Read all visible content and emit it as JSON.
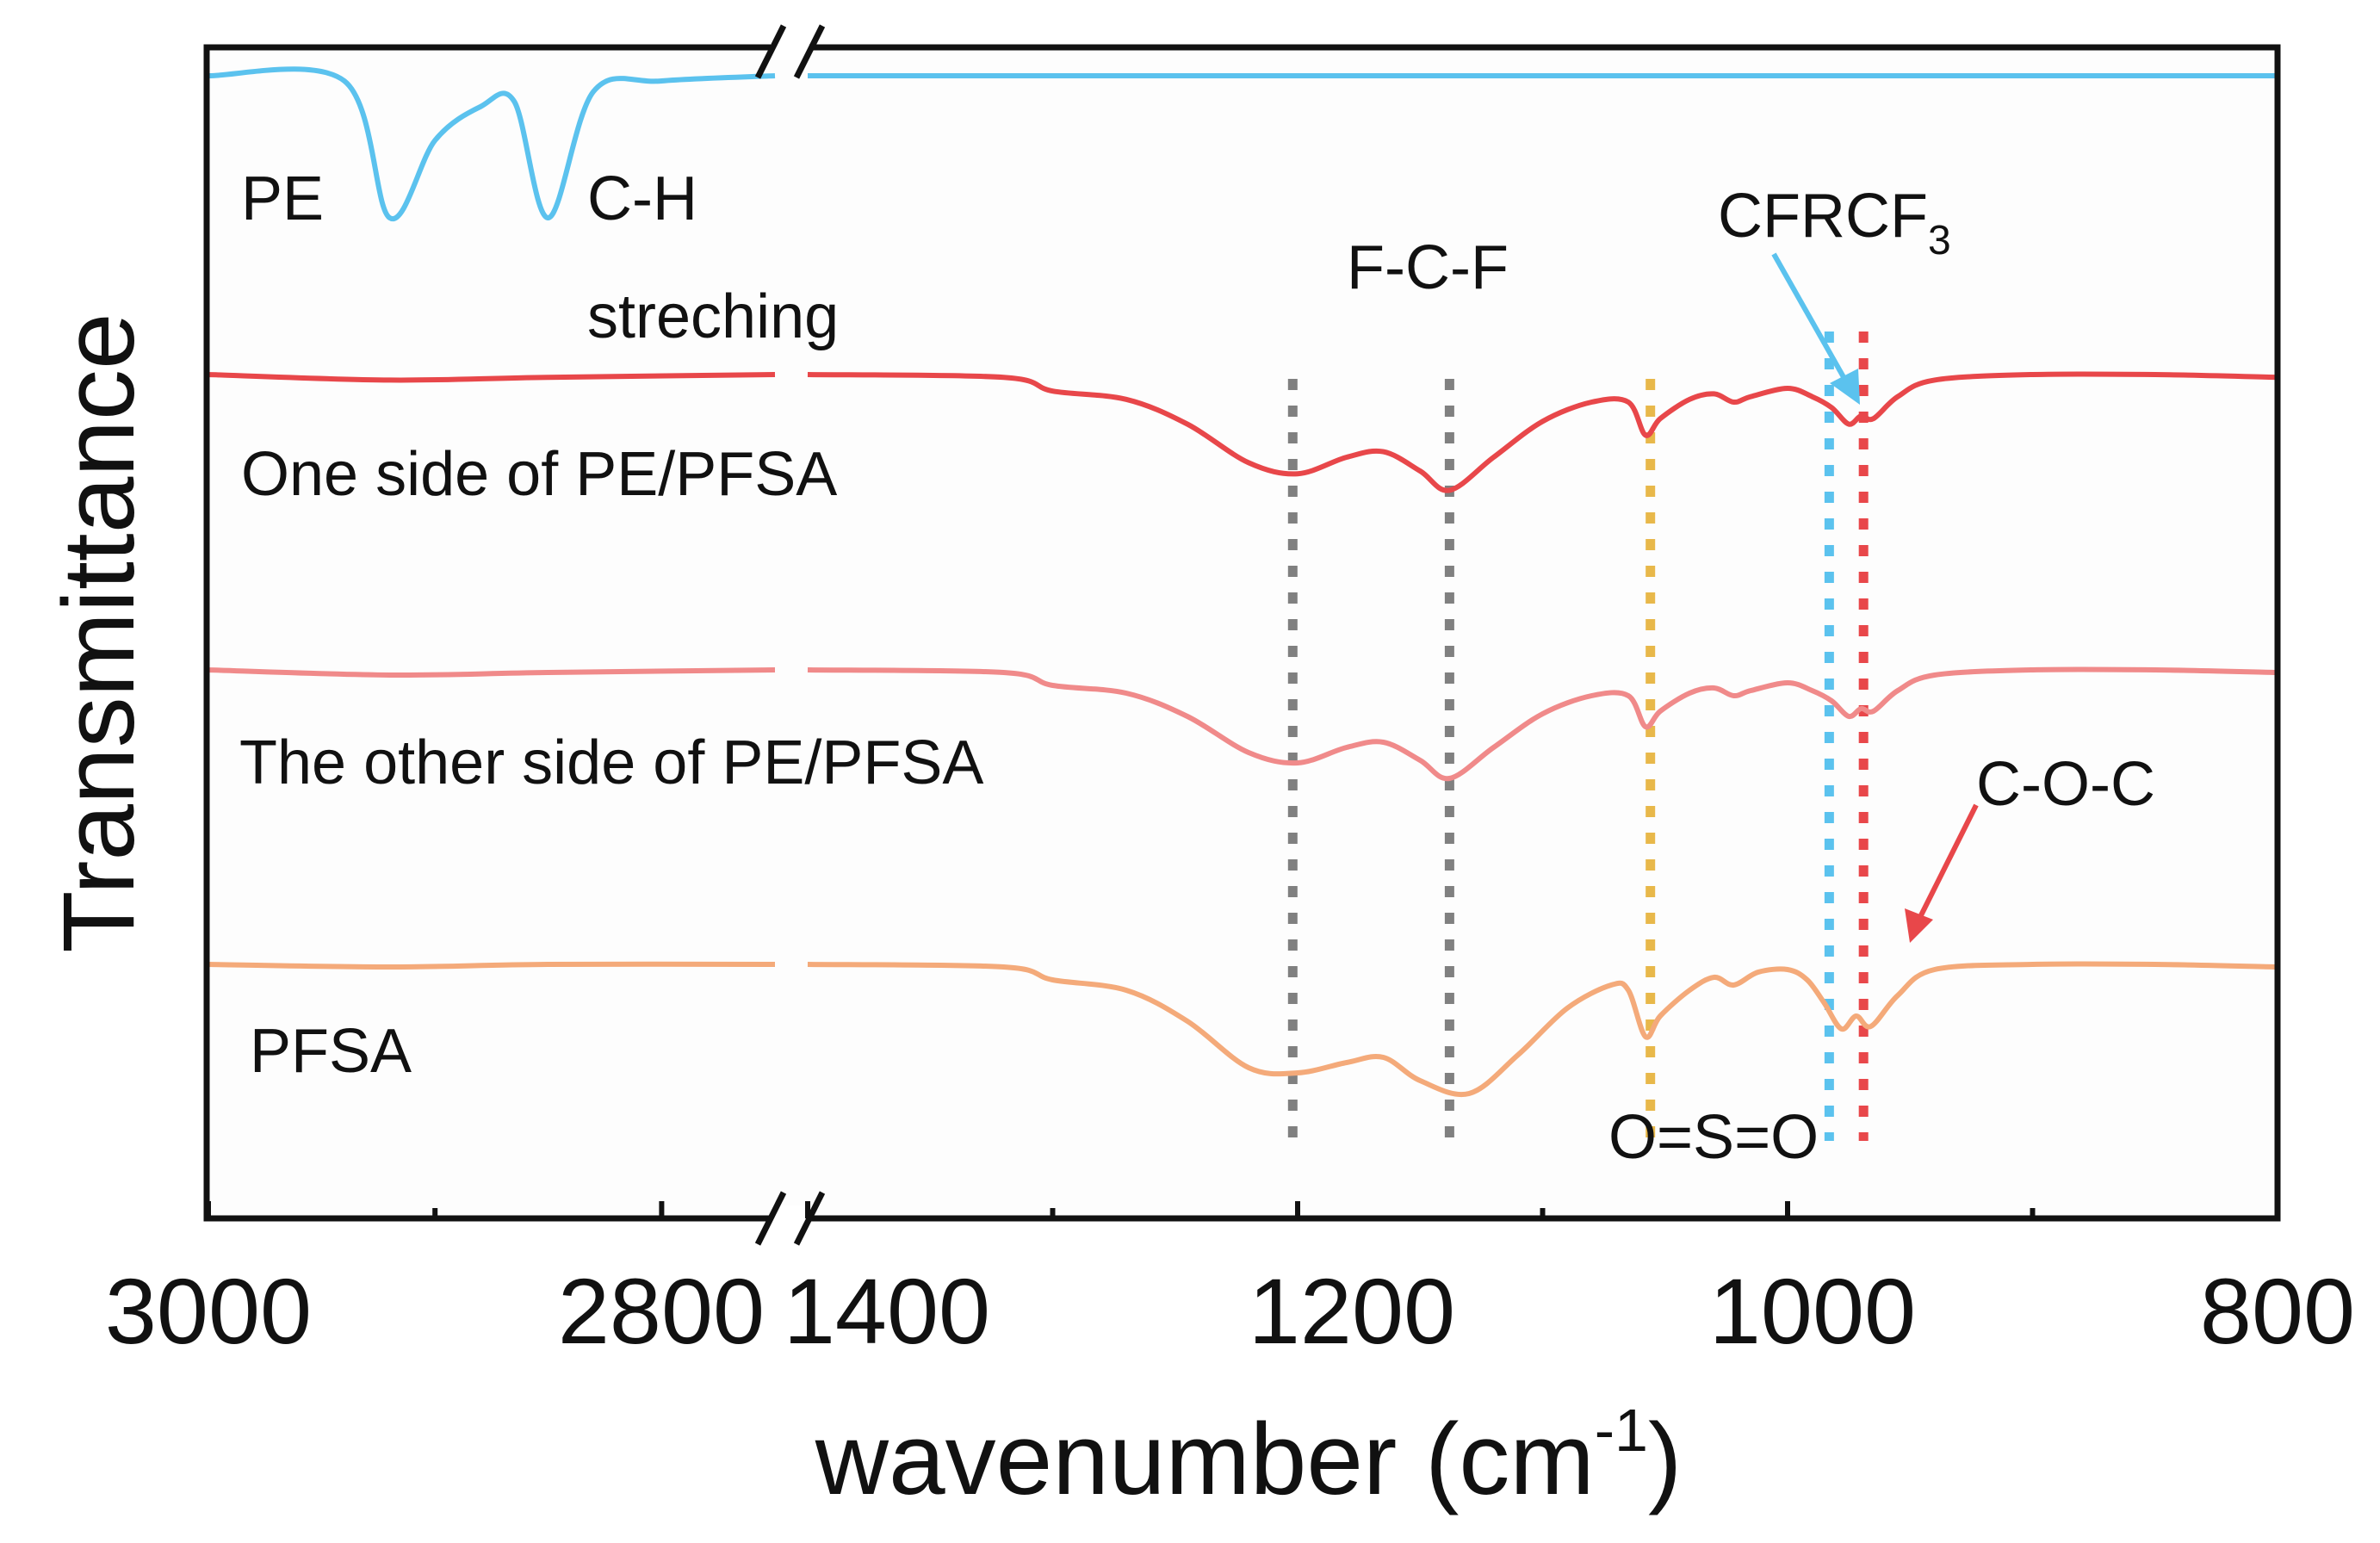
{
  "chart_data": {
    "type": "line",
    "title": "",
    "xlabel": "wavenumber (cm",
    "xlabel_sup": "-1",
    "xlabel_close": ")",
    "ylabel": "Transmittance",
    "broken_axis": true,
    "x_segments": [
      {
        "range": [
          3000,
          2750
        ],
        "ticks": [
          3000,
          2900,
          2800
        ],
        "tick_labels": [
          "3000",
          "2800"
        ]
      },
      {
        "range": [
          1400,
          800
        ],
        "ticks": [
          1400,
          1300,
          1200,
          1100,
          1000,
          900,
          800
        ],
        "tick_labels": [
          "1400",
          "1200",
          "1000",
          "800"
        ]
      }
    ],
    "series": [
      {
        "name": "PE",
        "label": "PE",
        "color": "#5bc2ee",
        "baseline": 0,
        "peaks": [
          {
            "x": 2920,
            "depth": 0.55,
            "width": 8
          },
          {
            "x": 2850,
            "depth": 0.55,
            "width": 6
          },
          {
            "x": 2885,
            "depth": 0.12,
            "width": 25
          }
        ],
        "points": [
          [
            3000,
            0
          ],
          [
            2940,
            -0.02
          ],
          [
            2920,
            -0.55
          ],
          [
            2900,
            -0.25
          ],
          [
            2880,
            -0.12
          ],
          [
            2865,
            -0.1
          ],
          [
            2850,
            -0.55
          ],
          [
            2830,
            -0.06
          ],
          [
            2800,
            -0.02
          ],
          [
            2750,
            0
          ],
          [
            1400,
            0
          ],
          [
            1100,
            0
          ],
          [
            800,
            0
          ]
        ]
      },
      {
        "name": "One side of PE/PFSA",
        "label": "One side of PE/PFSA",
        "color": "#e8474a",
        "points": [
          [
            3000,
            0
          ],
          [
            2920,
            -0.02
          ],
          [
            2850,
            -0.01
          ],
          [
            2750,
            0
          ],
          [
            1400,
            0
          ],
          [
            1320,
            -0.01
          ],
          [
            1300,
            -0.06
          ],
          [
            1270,
            -0.09
          ],
          [
            1245,
            -0.18
          ],
          [
            1220,
            -0.32
          ],
          [
            1200,
            -0.36
          ],
          [
            1180,
            -0.3
          ],
          [
            1165,
            -0.28
          ],
          [
            1150,
            -0.35
          ],
          [
            1138,
            -0.42
          ],
          [
            1120,
            -0.3
          ],
          [
            1100,
            -0.17
          ],
          [
            1080,
            -0.1
          ],
          [
            1065,
            -0.1
          ],
          [
            1058,
            -0.22
          ],
          [
            1052,
            -0.16
          ],
          [
            1040,
            -0.09
          ],
          [
            1030,
            -0.07
          ],
          [
            1022,
            -0.1
          ],
          [
            1015,
            -0.08
          ],
          [
            1000,
            -0.05
          ],
          [
            990,
            -0.08
          ],
          [
            982,
            -0.12
          ],
          [
            975,
            -0.18
          ],
          [
            970,
            -0.15
          ],
          [
            965,
            -0.16
          ],
          [
            955,
            -0.08
          ],
          [
            940,
            -0.02
          ],
          [
            900,
            0
          ],
          [
            850,
            0
          ],
          [
            800,
            -0.01
          ]
        ]
      },
      {
        "name": "The other side of PE/PFSA",
        "label": "The other side of PE/PFSA",
        "color": "#f08a8a",
        "points": [
          [
            3000,
            0
          ],
          [
            2920,
            -0.02
          ],
          [
            2850,
            -0.01
          ],
          [
            2750,
            0
          ],
          [
            1400,
            0
          ],
          [
            1320,
            -0.01
          ],
          [
            1300,
            -0.06
          ],
          [
            1270,
            -0.09
          ],
          [
            1245,
            -0.18
          ],
          [
            1220,
            -0.32
          ],
          [
            1200,
            -0.36
          ],
          [
            1180,
            -0.3
          ],
          [
            1165,
            -0.28
          ],
          [
            1150,
            -0.35
          ],
          [
            1138,
            -0.42
          ],
          [
            1120,
            -0.3
          ],
          [
            1100,
            -0.17
          ],
          [
            1080,
            -0.1
          ],
          [
            1065,
            -0.1
          ],
          [
            1058,
            -0.22
          ],
          [
            1052,
            -0.16
          ],
          [
            1040,
            -0.09
          ],
          [
            1030,
            -0.07
          ],
          [
            1022,
            -0.1
          ],
          [
            1015,
            -0.08
          ],
          [
            1000,
            -0.05
          ],
          [
            990,
            -0.08
          ],
          [
            982,
            -0.12
          ],
          [
            975,
            -0.18
          ],
          [
            970,
            -0.15
          ],
          [
            965,
            -0.16
          ],
          [
            955,
            -0.08
          ],
          [
            940,
            -0.02
          ],
          [
            900,
            0
          ],
          [
            850,
            0
          ],
          [
            800,
            -0.01
          ]
        ]
      },
      {
        "name": "PFSA",
        "label": "PFSA",
        "color": "#f4aa7a",
        "points": [
          [
            3000,
            0
          ],
          [
            2920,
            -0.01
          ],
          [
            2850,
            0
          ],
          [
            2750,
            0
          ],
          [
            1400,
            0
          ],
          [
            1320,
            -0.01
          ],
          [
            1300,
            -0.06
          ],
          [
            1270,
            -0.1
          ],
          [
            1245,
            -0.22
          ],
          [
            1220,
            -0.4
          ],
          [
            1200,
            -0.42
          ],
          [
            1180,
            -0.38
          ],
          [
            1165,
            -0.36
          ],
          [
            1150,
            -0.45
          ],
          [
            1130,
            -0.5
          ],
          [
            1110,
            -0.35
          ],
          [
            1090,
            -0.17
          ],
          [
            1072,
            -0.08
          ],
          [
            1065,
            -0.1
          ],
          [
            1058,
            -0.28
          ],
          [
            1052,
            -0.2
          ],
          [
            1040,
            -0.1
          ],
          [
            1030,
            -0.05
          ],
          [
            1022,
            -0.08
          ],
          [
            1012,
            -0.03
          ],
          [
            1000,
            -0.02
          ],
          [
            992,
            -0.06
          ],
          [
            985,
            -0.15
          ],
          [
            978,
            -0.25
          ],
          [
            972,
            -0.2
          ],
          [
            966,
            -0.24
          ],
          [
            955,
            -0.12
          ],
          [
            940,
            -0.02
          ],
          [
            900,
            0
          ],
          [
            850,
            0
          ],
          [
            800,
            -0.01
          ]
        ]
      }
    ],
    "reference_lines": [
      {
        "x": 1202,
        "color": "#808080"
      },
      {
        "x": 1138,
        "color": "#808080"
      },
      {
        "x": 1056,
        "color": "#e8b84a"
      },
      {
        "x": 983,
        "color": "#5bc2ee"
      },
      {
        "x": 969,
        "color": "#e8474a"
      }
    ],
    "annotations": [
      {
        "text": "C-H",
        "color": "#111111"
      },
      {
        "text": "streching",
        "color": "#111111"
      },
      {
        "text": "F-C-F",
        "color": "#808080"
      },
      {
        "text": "CFRCF",
        "sub": "3",
        "color": "#5bc2ee"
      },
      {
        "text": "C-O-C",
        "color": "#e8474a"
      },
      {
        "text": "O=S=O",
        "color": "#e8b84a"
      }
    ],
    "grid": false,
    "legend": "inline labels"
  }
}
